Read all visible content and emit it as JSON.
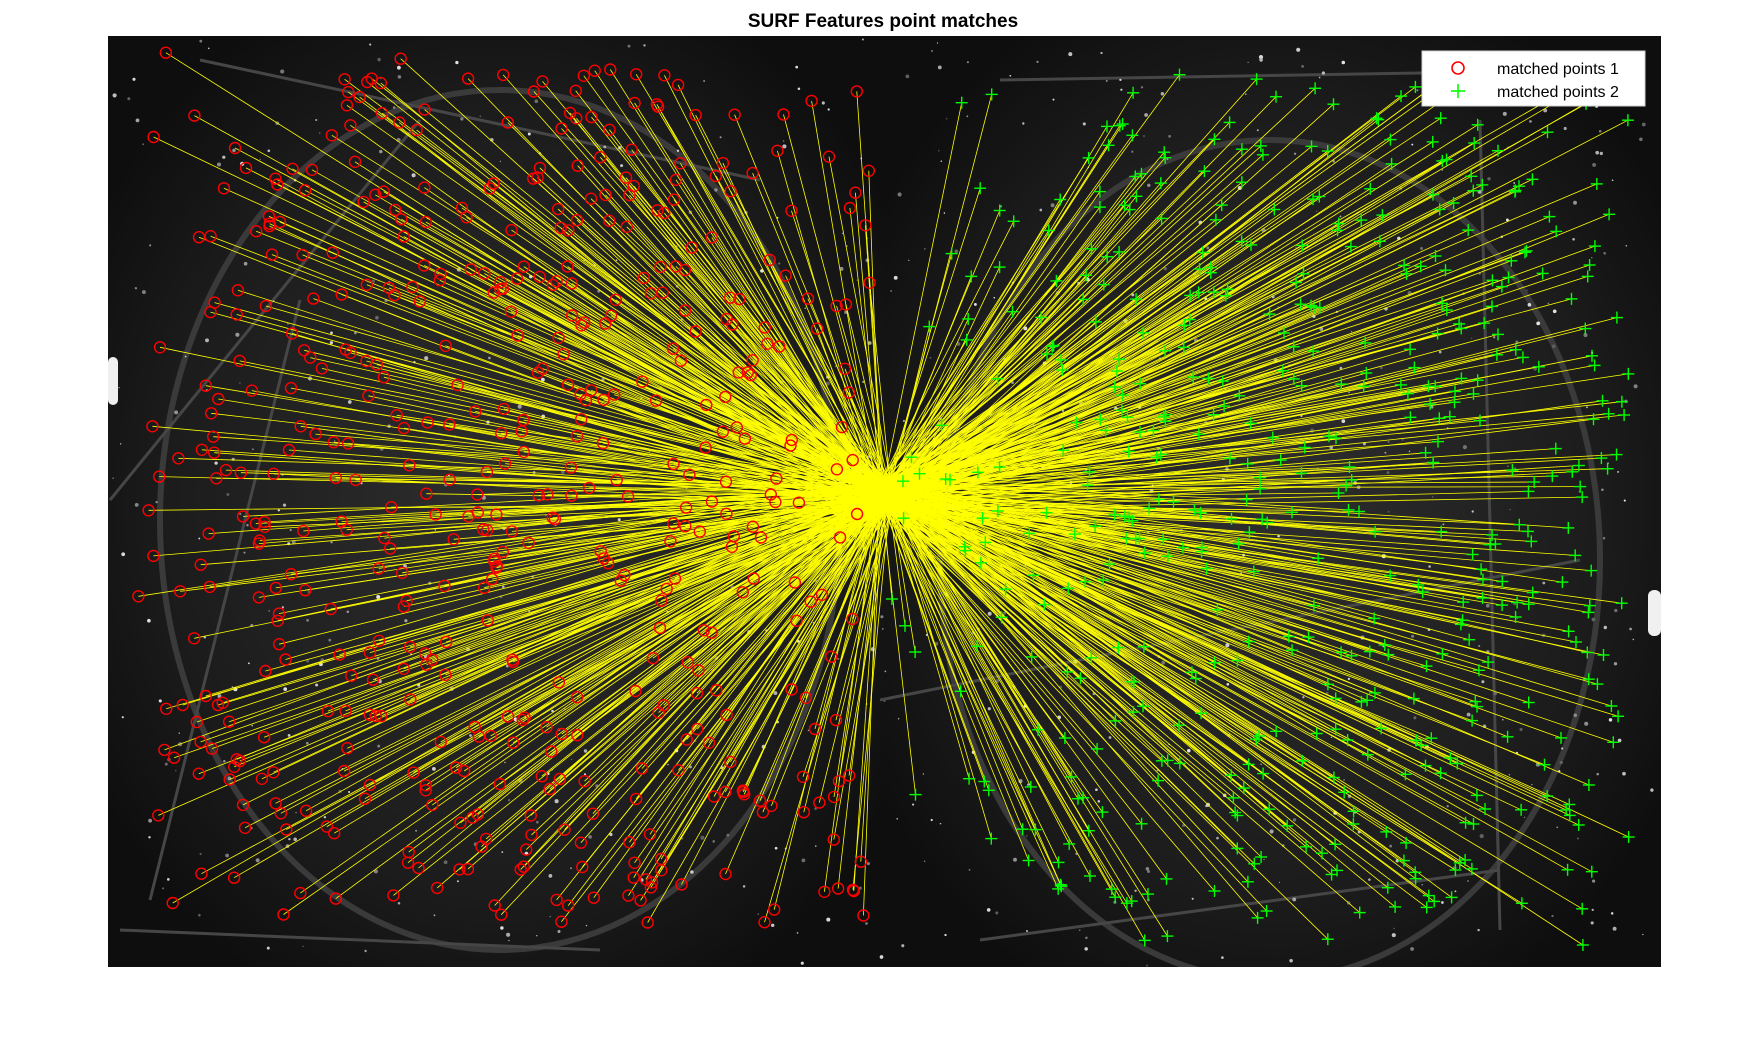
{
  "chart_data": {
    "type": "scatter",
    "title": "SURF Features point matches",
    "legend_placement": "top-right",
    "series": [
      {
        "name": "matched points 1",
        "marker": "circle",
        "color": "#ff0000",
        "count": 520
      },
      {
        "name": "matched points 2",
        "marker": "plus",
        "color": "#00ff00",
        "count": 520
      }
    ],
    "match_line_color": "#ffff00",
    "grid": false,
    "axes_visible": false
  },
  "colors": {
    "background": "#000000",
    "matches": "#ffff00",
    "points1": "#ff0000",
    "points2": "#00ff00"
  }
}
